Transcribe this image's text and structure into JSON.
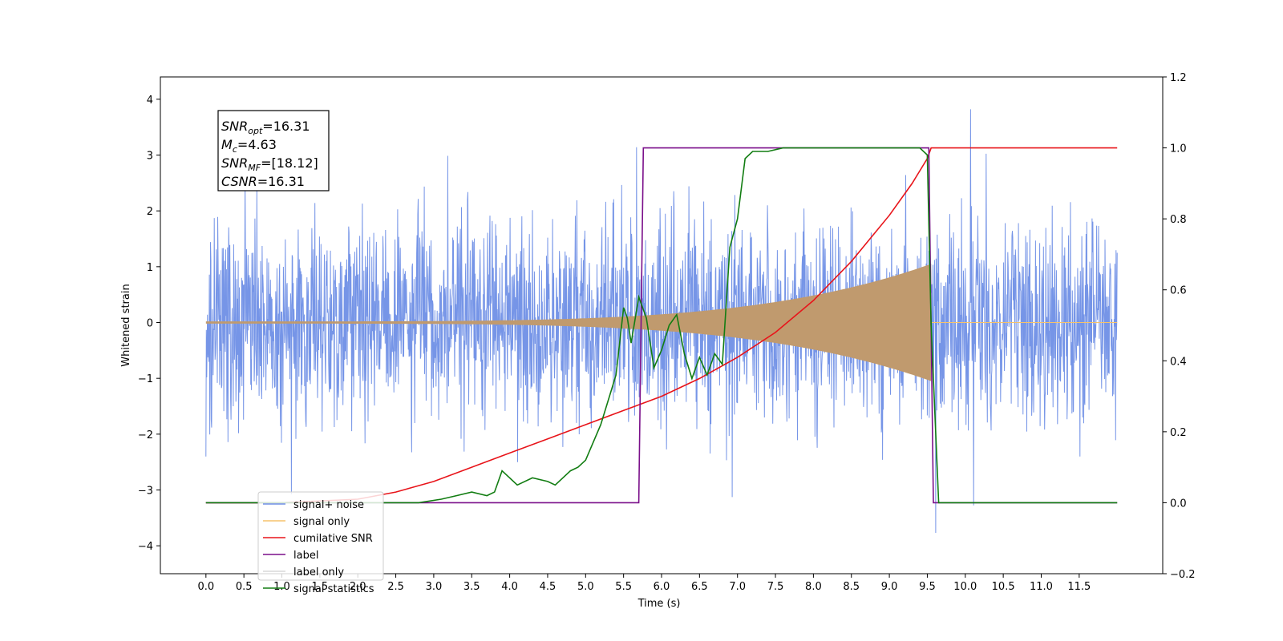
{
  "chart_data": {
    "type": "line",
    "xlabel": "Time (s)",
    "ylabel": "Whitened strain",
    "xlim": [
      -0.6,
      12.6
    ],
    "ylim": [
      -4.5,
      4.4
    ],
    "y2lim": [
      -0.2,
      1.2
    ],
    "x_ticks": [
      "0.0",
      "0.5",
      "1.0",
      "1.5",
      "2.0",
      "2.5",
      "3.0",
      "3.5",
      "4.0",
      "4.5",
      "5.0",
      "5.5",
      "6.0",
      "6.5",
      "7.0",
      "7.5",
      "8.0",
      "8.5",
      "9.0",
      "9.5",
      "10.0",
      "10.5",
      "11.0",
      "11.5"
    ],
    "y_ticks": [
      "4",
      "3",
      "2",
      "1",
      "0",
      "−1",
      "−2",
      "−3",
      "−4"
    ],
    "y2_ticks": [
      "1.2",
      "1.0",
      "0.8",
      "0.6",
      "0.4",
      "0.2",
      "0.0",
      "−0.2"
    ],
    "legend_position": "lower-left",
    "annotation": [
      {
        "sym": "SNR",
        "sub": "opt",
        "value": "=16.31"
      },
      {
        "sym": "M",
        "sub": "c",
        "value": "=4.63"
      },
      {
        "sym": "SNR",
        "sub": "MF",
        "value": "=[18.12]"
      },
      {
        "sym": "CSNR",
        "sub": "",
        "value": "=16.31"
      }
    ],
    "series": [
      {
        "name": "signal+ noise",
        "color": "#6f8fe6",
        "axis": "left",
        "kind": "noise",
        "x_range": [
          0.0,
          12.0
        ],
        "envelope": 2.2
      },
      {
        "name": "signal only",
        "color": "#f5c26b",
        "axis": "left",
        "kind": "chirp",
        "x_range": [
          0.0,
          9.55
        ],
        "amp_start": 0.02,
        "amp_end": 1.05
      },
      {
        "name": "cumilative SNR",
        "color": "#e8141a",
        "axis": "right",
        "x": [
          0.0,
          1.0,
          2.0,
          2.5,
          3.0,
          3.5,
          4.0,
          4.5,
          5.0,
          5.5,
          6.0,
          6.5,
          7.0,
          7.5,
          8.0,
          8.5,
          9.0,
          9.3,
          9.5,
          9.55,
          12.0
        ],
        "y": [
          0.0,
          0.0,
          0.01,
          0.03,
          0.06,
          0.1,
          0.14,
          0.18,
          0.22,
          0.26,
          0.3,
          0.35,
          0.41,
          0.48,
          0.57,
          0.68,
          0.81,
          0.9,
          0.97,
          1.0,
          1.0
        ]
      },
      {
        "name": "label",
        "color": "#7a0f8a",
        "axis": "right",
        "x": [
          0.0,
          5.7,
          5.76,
          9.52,
          9.58,
          12.0
        ],
        "y": [
          0.0,
          0.0,
          1.0,
          1.0,
          0.0,
          0.0
        ]
      },
      {
        "name": "label only",
        "color": "#d8d8d8",
        "axis": "right",
        "x": [],
        "y": []
      },
      {
        "name": "signal statistics",
        "color": "#127d12",
        "axis": "right",
        "x": [
          0.0,
          2.0,
          2.8,
          3.1,
          3.3,
          3.5,
          3.7,
          3.8,
          3.85,
          3.9,
          4.1,
          4.3,
          4.5,
          4.6,
          4.8,
          4.9,
          5.0,
          5.2,
          5.4,
          5.5,
          5.55,
          5.6,
          5.7,
          5.8,
          5.9,
          6.0,
          6.1,
          6.2,
          6.3,
          6.4,
          6.5,
          6.6,
          6.7,
          6.8,
          6.9,
          7.0,
          7.1,
          7.2,
          7.4,
          7.6,
          8.0,
          9.0,
          9.4,
          9.5,
          9.55,
          9.65,
          12.0
        ],
        "y": [
          0.0,
          0.0,
          0.0,
          0.01,
          0.02,
          0.03,
          0.02,
          0.03,
          0.06,
          0.09,
          0.05,
          0.07,
          0.06,
          0.05,
          0.09,
          0.1,
          0.12,
          0.22,
          0.36,
          0.55,
          0.52,
          0.45,
          0.58,
          0.52,
          0.38,
          0.43,
          0.5,
          0.53,
          0.42,
          0.35,
          0.41,
          0.36,
          0.42,
          0.39,
          0.72,
          0.8,
          0.97,
          0.99,
          0.99,
          1.0,
          1.0,
          1.0,
          1.0,
          0.98,
          0.5,
          0.0,
          0.0
        ]
      }
    ]
  }
}
